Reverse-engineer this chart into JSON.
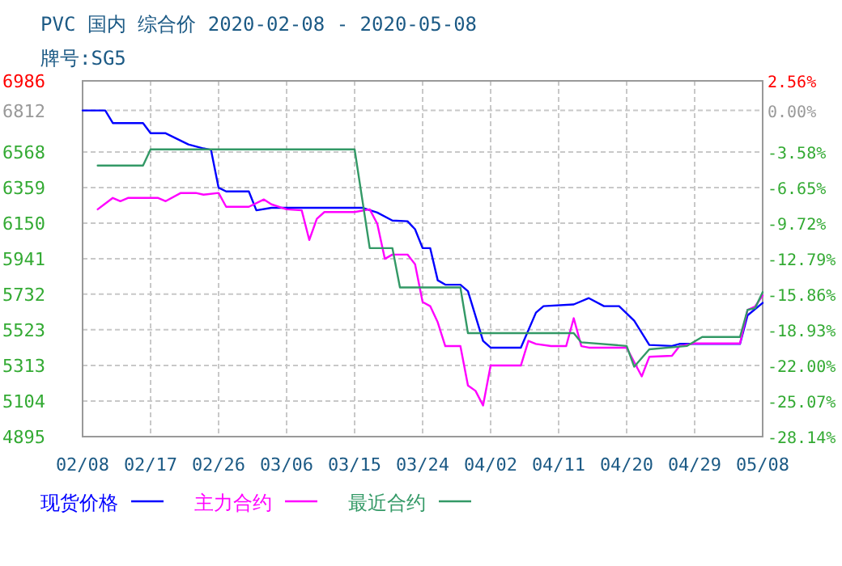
{
  "chart_data": {
    "type": "line",
    "title": "PVC 国内 综合价 2020-02-08 - 2020-05-08",
    "subtitle": "牌号:SG5",
    "xlim": [
      "2020-02-08",
      "2020-05-08"
    ],
    "xticks": [
      {
        "value": "2020-02-08",
        "label": "02/08"
      },
      {
        "value": "2020-02-17",
        "label": "02/17"
      },
      {
        "value": "2020-02-26",
        "label": "02/26"
      },
      {
        "value": "2020-03-06",
        "label": "03/06"
      },
      {
        "value": "2020-03-15",
        "label": "03/15"
      },
      {
        "value": "2020-03-24",
        "label": "03/24"
      },
      {
        "value": "2020-04-02",
        "label": "04/02"
      },
      {
        "value": "2020-04-11",
        "label": "04/11"
      },
      {
        "value": "2020-04-20",
        "label": "04/20"
      },
      {
        "value": "2020-04-29",
        "label": "04/29"
      },
      {
        "value": "2020-05-08",
        "label": "05/08"
      }
    ],
    "ylim": [
      4895,
      6986
    ],
    "yticks": [
      4895,
      5104,
      5313,
      5523,
      5732,
      5941,
      6150,
      6359,
      6568,
      6812,
      6986
    ],
    "y2lim": [
      -28.14,
      2.56
    ],
    "y2ticks": [
      {
        "value": -28.14,
        "label": "-28.14%"
      },
      {
        "value": -25.07,
        "label": "-25.07%"
      },
      {
        "value": -22.0,
        "label": "-22.00%"
      },
      {
        "value": -18.93,
        "label": "-18.93%"
      },
      {
        "value": -15.86,
        "label": "-15.86%"
      },
      {
        "value": -12.79,
        "label": "-12.79%"
      },
      {
        "value": -9.72,
        "label": "-9.72%"
      },
      {
        "value": -6.65,
        "label": "-6.65%"
      },
      {
        "value": -3.58,
        "label": "-3.58%"
      },
      {
        "value": 0,
        "label": "0.00%"
      },
      {
        "value": 2.56,
        "label": "2.56%"
      }
    ],
    "grid": true,
    "legend": "bottom",
    "marker": "none",
    "line_style": "solid",
    "series": [
      {
        "name": "现货价格",
        "color": "#0000ff",
        "x": [
          "2020-02-08",
          "2020-02-11",
          "2020-02-12",
          "2020-02-16",
          "2020-02-17",
          "2020-02-19",
          "2020-02-22",
          "2020-02-24",
          "2020-02-25",
          "2020-02-26",
          "2020-02-27",
          "2020-03-01",
          "2020-03-02",
          "2020-03-04",
          "2020-03-16",
          "2020-03-18",
          "2020-03-20",
          "2020-03-22",
          "2020-03-23",
          "2020-03-24",
          "2020-03-25",
          "2020-03-26",
          "2020-03-27",
          "2020-03-29",
          "2020-03-30",
          "2020-04-01",
          "2020-04-02",
          "2020-04-06",
          "2020-04-08",
          "2020-04-09",
          "2020-04-13",
          "2020-04-15",
          "2020-04-17",
          "2020-04-19",
          "2020-04-21",
          "2020-04-23",
          "2020-04-26",
          "2020-04-27",
          "2020-05-05",
          "2020-05-06",
          "2020-05-08"
        ],
        "values": [
          6812,
          6812,
          6738,
          6738,
          6678,
          6678,
          6612,
          6589,
          6580,
          6358,
          6336,
          6336,
          6225,
          6240,
          6240,
          6212,
          6165,
          6161,
          6114,
          6003,
          6003,
          5814,
          5788,
          5788,
          5750,
          5458,
          5418,
          5418,
          5624,
          5662,
          5672,
          5709,
          5662,
          5662,
          5576,
          5434,
          5428,
          5440,
          5440,
          5608,
          5681
        ]
      },
      {
        "name": "主力合约",
        "color": "#ff00ff",
        "x": [
          "2020-02-10",
          "2020-02-12",
          "2020-02-13",
          "2020-02-14",
          "2020-02-18",
          "2020-02-19",
          "2020-02-21",
          "2020-02-23",
          "2020-02-24",
          "2020-02-26",
          "2020-02-27",
          "2020-03-01",
          "2020-03-03",
          "2020-03-04",
          "2020-03-06",
          "2020-03-08",
          "2020-03-09",
          "2020-03-10",
          "2020-03-11",
          "2020-03-15",
          "2020-03-17",
          "2020-03-18",
          "2020-03-19",
          "2020-03-20",
          "2020-03-22",
          "2020-03-23",
          "2020-03-24",
          "2020-03-25",
          "2020-03-26",
          "2020-03-27",
          "2020-03-29",
          "2020-03-30",
          "2020-03-31",
          "2020-04-01",
          "2020-04-02",
          "2020-04-06",
          "2020-04-07",
          "2020-04-08",
          "2020-04-10",
          "2020-04-12",
          "2020-04-13",
          "2020-04-14",
          "2020-04-15",
          "2020-04-20",
          "2020-04-22",
          "2020-04-23",
          "2020-04-26",
          "2020-04-27",
          "2020-04-29",
          "2020-05-05",
          "2020-05-06",
          "2020-05-07",
          "2020-05-08"
        ],
        "values": [
          6231,
          6298,
          6279,
          6298,
          6298,
          6279,
          6327,
          6327,
          6317,
          6327,
          6246,
          6246,
          6289,
          6260,
          6231,
          6225,
          6051,
          6175,
          6215,
          6215,
          6231,
          6146,
          5940,
          5965,
          5965,
          5908,
          5686,
          5662,
          5567,
          5427,
          5427,
          5196,
          5164,
          5078,
          5313,
          5313,
          5458,
          5440,
          5427,
          5427,
          5591,
          5427,
          5418,
          5418,
          5249,
          5364,
          5370,
          5427,
          5443,
          5443,
          5640,
          5660,
          5725
        ]
      },
      {
        "name": "最近合约",
        "color": "#339966",
        "x": [
          "2020-02-10",
          "2020-02-16",
          "2020-02-17",
          "2020-03-15",
          "2020-03-17",
          "2020-03-20",
          "2020-03-21",
          "2020-03-29",
          "2020-03-30",
          "2020-04-13",
          "2020-04-14",
          "2020-04-20",
          "2020-04-21",
          "2020-04-23",
          "2020-04-28",
          "2020-04-30",
          "2020-05-05",
          "2020-05-06",
          "2020-05-07",
          "2020-05-08"
        ],
        "values": [
          6488,
          6488,
          6583,
          6583,
          6003,
          6003,
          5772,
          5772,
          5503,
          5503,
          5449,
          5428,
          5306,
          5408,
          5428,
          5481,
          5481,
          5640,
          5650,
          5744
        ]
      }
    ]
  }
}
